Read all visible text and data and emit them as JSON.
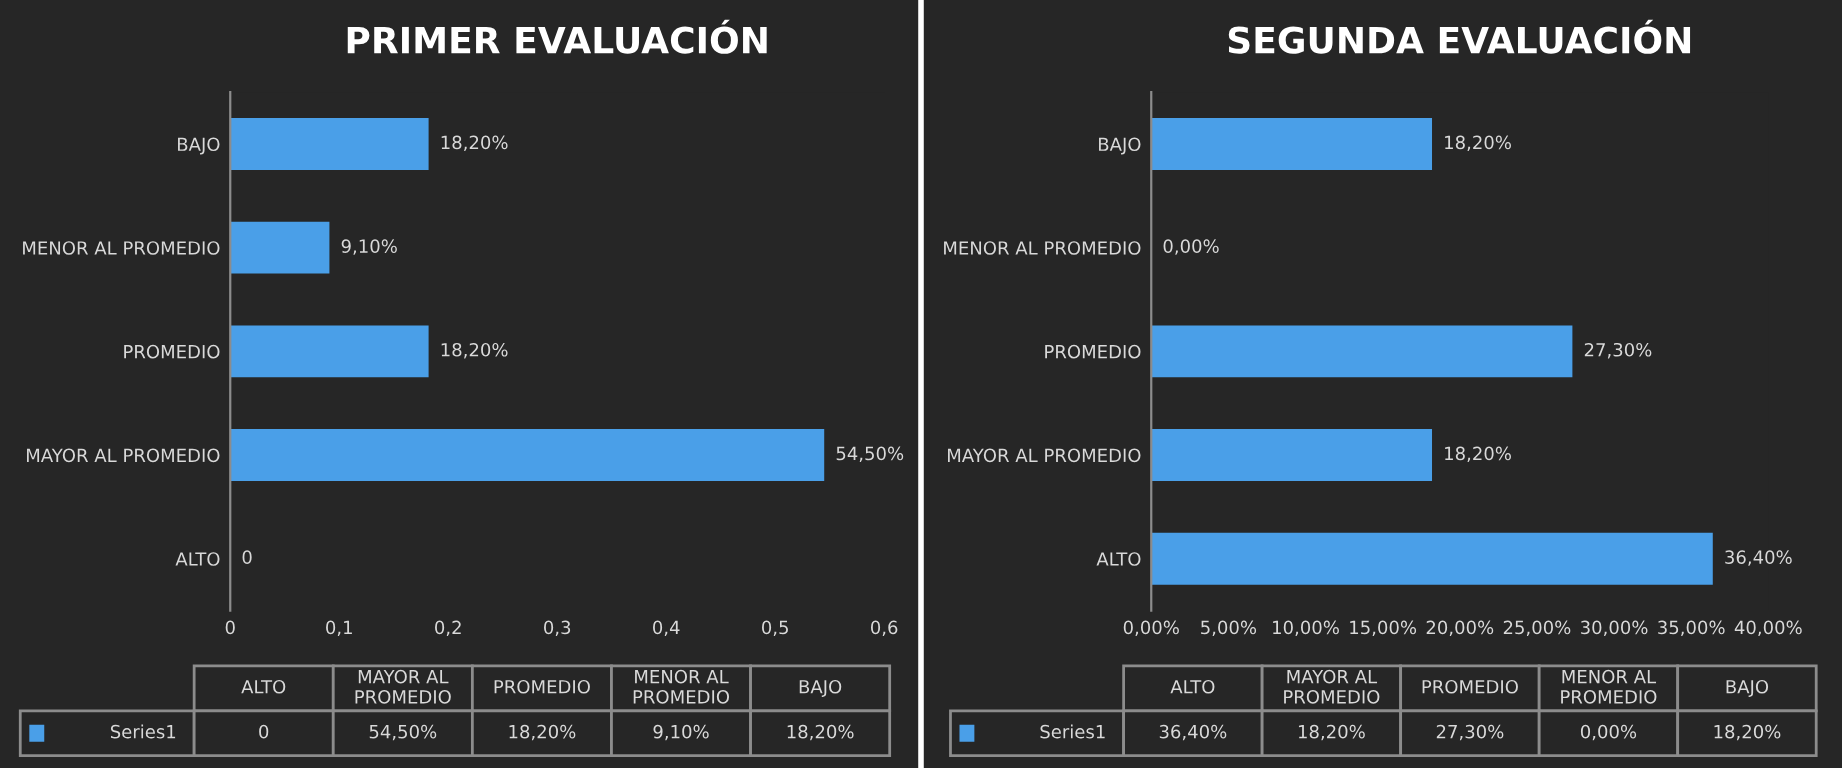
{
  "chart_data": [
    {
      "type": "bar",
      "orientation": "horizontal",
      "title": "PRIMER EVALUACIÓN",
      "categories": [
        "BAJO",
        "MENOR AL PROMEDIO",
        "PROMEDIO",
        "MAYOR AL PROMEDIO",
        "ALTO"
      ],
      "series": [
        {
          "name": "Series1",
          "color": "#4a9fe8",
          "values": [
            0.182,
            0.091,
            0.182,
            0.545,
            0
          ],
          "value_labels": [
            "18,20%",
            "9,10%",
            "18,20%",
            "54,50%",
            "0"
          ]
        }
      ],
      "xlim": [
        0,
        0.6
      ],
      "xticks": [
        0,
        {
          "value": 0.1,
          "label": "0,1"
        },
        {
          "value": 0.2,
          "label": "0,2"
        },
        {
          "value": 0.3,
          "label": "0,3"
        },
        {
          "value": 0.4,
          "label": "0,4"
        },
        {
          "value": 0.5,
          "label": "0,5"
        },
        {
          "value": 0.6,
          "label": "0,6"
        }
      ],
      "grid": false,
      "legend": "bottom"
    },
    {
      "type": "bar",
      "orientation": "horizontal",
      "title": "SEGUNDA EVALUACIÓN",
      "categories": [
        "BAJO",
        "MENOR AL PROMEDIO",
        "PROMEDIO",
        "MAYOR AL PROMEDIO",
        "ALTO"
      ],
      "series": [
        {
          "name": "Series1",
          "color": "#4a9fe8",
          "values": [
            18.2,
            0,
            27.3,
            18.2,
            36.4
          ],
          "value_labels": [
            "18,20%",
            "0,00%",
            "27,30%",
            "18,20%",
            "36,40%"
          ]
        }
      ],
      "xlim": [
        0,
        40
      ],
      "xticks": [
        {
          "value": 0,
          "label": "0,00%"
        },
        {
          "value": 5,
          "label": "5,00%"
        },
        {
          "value": 10,
          "label": "10,00%"
        },
        {
          "value": 15,
          "label": "15,00%"
        },
        {
          "value": 20,
          "label": "20,00%"
        },
        {
          "value": 25,
          "label": "25,00%"
        },
        {
          "value": 30,
          "label": "30,00%"
        },
        {
          "value": 35,
          "label": "35,00%"
        },
        {
          "value": 40,
          "label": "40,00%"
        }
      ],
      "grid": false,
      "legend": "bottom"
    }
  ]
}
